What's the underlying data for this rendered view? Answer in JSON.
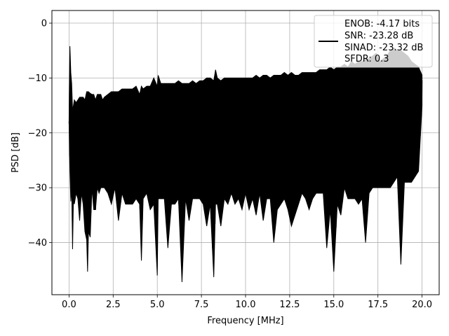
{
  "chart_data": {
    "type": "line",
    "title": "",
    "xlabel": "Frequency [MHz]",
    "ylabel": "PSD [dB]",
    "xlim": [
      -0.97,
      20.97
    ],
    "ylim": [
      -49.5,
      2.3
    ],
    "xticks": [
      0.0,
      2.5,
      5.0,
      7.5,
      10.0,
      12.5,
      15.0,
      17.5,
      20.0
    ],
    "xtick_labels": [
      "0.0",
      "2.5",
      "5.0",
      "7.5",
      "10.0",
      "12.5",
      "15.0",
      "17.5",
      "20.0"
    ],
    "yticks": [
      0,
      -10,
      -20,
      -30,
      -40
    ],
    "ytick_labels": [
      "0",
      "−10",
      "−20",
      "−30",
      "−40"
    ],
    "grid": true,
    "legend_position": "top-right",
    "legend_entries": [
      "ENOB: -4.17 bits",
      "SNR: -23.28 dB",
      "SINAD: -23.32 dB",
      "SFDR: 0.3"
    ],
    "series": [
      {
        "name": "ENOB: -4.17 bits",
        "color": "#000000",
        "x": [
          0.0,
          0.05,
          0.1,
          0.15,
          0.2,
          0.25,
          0.3,
          0.4,
          0.5,
          0.6,
          0.7,
          0.8,
          0.9,
          1.0,
          1.05,
          1.1,
          1.2,
          1.3,
          1.4,
          1.5,
          1.6,
          1.7,
          1.8,
          1.9,
          2.0,
          2.2,
          2.4,
          2.6,
          2.8,
          3.0,
          3.2,
          3.4,
          3.6,
          3.8,
          4.0,
          4.1,
          4.2,
          4.4,
          4.6,
          4.8,
          5.0,
          5.05,
          5.2,
          5.4,
          5.6,
          5.8,
          6.0,
          6.2,
          6.4,
          6.6,
          6.8,
          7.0,
          7.2,
          7.4,
          7.6,
          7.8,
          8.0,
          8.2,
          8.3,
          8.4,
          8.6,
          8.8,
          9.0,
          9.2,
          9.4,
          9.6,
          9.8,
          10.0,
          10.2,
          10.4,
          10.6,
          10.8,
          11.0,
          11.2,
          11.4,
          11.6,
          11.8,
          12.0,
          12.2,
          12.4,
          12.6,
          12.8,
          13.0,
          13.2,
          13.4,
          13.6,
          13.8,
          14.0,
          14.2,
          14.4,
          14.6,
          14.8,
          15.0,
          15.2,
          15.4,
          15.6,
          15.8,
          16.0,
          16.2,
          16.4,
          16.6,
          16.8,
          17.0,
          17.2,
          17.4,
          17.6,
          17.8,
          18.0,
          18.2,
          18.4,
          18.6,
          18.8,
          19.0,
          19.2,
          19.4,
          19.6,
          19.8,
          20.0
        ],
        "max": [
          -18,
          -4.2,
          -9,
          -11,
          -16,
          -15,
          -14,
          -14.5,
          -14,
          -13.5,
          -13.5,
          -13.5,
          -14,
          -12.5,
          -12.5,
          -12.5,
          -12.8,
          -13,
          -13,
          -14,
          -13,
          -13,
          -13,
          -14,
          -13.5,
          -13,
          -12.5,
          -12.5,
          -12.5,
          -12,
          -12,
          -12,
          -12,
          -11.5,
          -13,
          -11.5,
          -12,
          -11.5,
          -11.5,
          -10,
          -11.5,
          -9.5,
          -11,
          -11,
          -11,
          -11,
          -11,
          -10.5,
          -11,
          -11,
          -11,
          -10.5,
          -11,
          -10.5,
          -10.5,
          -10,
          -10,
          -10.5,
          -8.5,
          -10,
          -10.5,
          -10,
          -10,
          -10,
          -10,
          -10,
          -10,
          -10,
          -10,
          -10,
          -9.5,
          -10,
          -9.5,
          -9.5,
          -10,
          -9.5,
          -9.5,
          -9.5,
          -9,
          -9.5,
          -9,
          -9.5,
          -9.5,
          -9,
          -9,
          -9,
          -9,
          -9,
          -8.5,
          -8.5,
          -8.5,
          -8,
          -8.5,
          -8,
          -8,
          -7.5,
          -8,
          -7,
          -7.5,
          -7,
          -7,
          -6.5,
          -6.5,
          -6,
          -5.5,
          -7,
          -6.5,
          -6,
          -5,
          -4.5,
          -5,
          -5,
          -5.5,
          -6,
          -7,
          -7.5,
          -8,
          -9.5
        ],
        "min": [
          -18,
          -27,
          -32.5,
          -30,
          -41.2,
          -32,
          -33,
          -31,
          -32,
          -36,
          -31,
          -33,
          -38,
          -39.5,
          -45.3,
          -38,
          -39,
          -30,
          -34,
          -34,
          -30,
          -31,
          -30,
          -30,
          -30,
          -31,
          -33,
          -30,
          -36,
          -31,
          -33,
          -33,
          -33,
          -32,
          -33,
          -43.3,
          -32,
          -31,
          -34,
          -33,
          -46,
          -32,
          -32,
          -32,
          -41,
          -33,
          -33,
          -32,
          -47.2,
          -32,
          -36,
          -32,
          -32,
          -32,
          -33,
          -37,
          -33,
          -46.3,
          -33,
          -33,
          -37,
          -32,
          -33,
          -31,
          -33,
          -32,
          -34,
          -31,
          -34,
          -32,
          -35,
          -31,
          -36,
          -32,
          -32,
          -40,
          -34,
          -33,
          -32,
          -34,
          -37,
          -35,
          -33,
          -31,
          -32,
          -34,
          -32,
          -31,
          -31,
          -31,
          -41,
          -34,
          -45.3,
          -33,
          -35,
          -30,
          -32,
          -32,
          -32,
          -33,
          -32,
          -40,
          -31,
          -30,
          -30,
          -30,
          -30,
          -30,
          -30,
          -29,
          -28,
          -44,
          -29,
          -29,
          -29,
          -28,
          -27,
          -15
        ]
      }
    ]
  }
}
